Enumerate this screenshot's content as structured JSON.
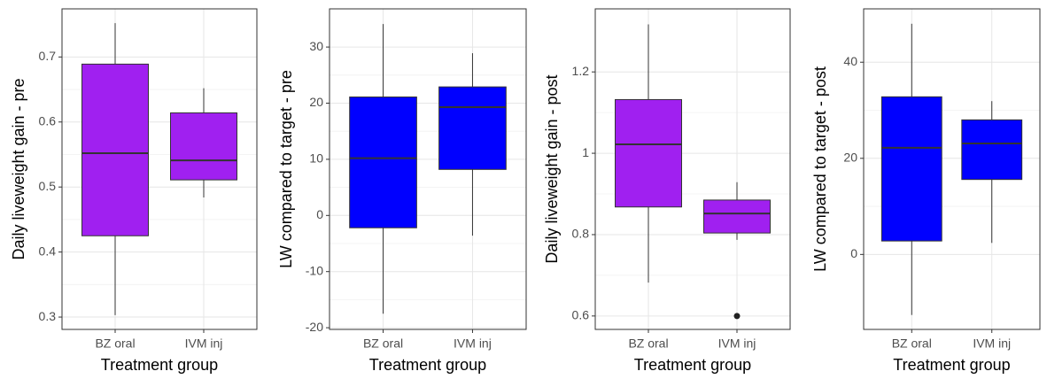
{
  "chart_data": [
    {
      "type": "boxplot",
      "ylabel": "Daily liveweight gain - pre",
      "xlabel": "Treatment group",
      "categories": [
        "BZ oral",
        "IVM inj"
      ],
      "color": "#a020f0",
      "boxes": [
        {
          "min": 0.303,
          "q1": 0.425,
          "median": 0.552,
          "q3": 0.689,
          "max": 0.752,
          "outliers": []
        },
        {
          "min": 0.484,
          "q1": 0.511,
          "median": 0.541,
          "q3": 0.614,
          "max": 0.652,
          "outliers": []
        }
      ],
      "ylim": [
        0.281,
        0.774
      ],
      "yticks": [
        0.3,
        0.4,
        0.5,
        0.6,
        0.7
      ],
      "grid": true
    },
    {
      "type": "boxplot",
      "ylabel": "LW compared to target - pre",
      "xlabel": "Treatment group",
      "categories": [
        "BZ oral",
        "IVM inj"
      ],
      "color": "#0000ff",
      "boxes": [
        {
          "min": -17.5,
          "q1": -2.2,
          "median": 10.2,
          "q3": 21.1,
          "max": 34.1,
          "outliers": []
        },
        {
          "min": -3.6,
          "q1": 8.2,
          "median": 19.3,
          "q3": 22.9,
          "max": 28.9,
          "outliers": []
        }
      ],
      "ylim": [
        -20.3,
        36.8
      ],
      "yticks": [
        -20,
        -10,
        0,
        10,
        20,
        30
      ],
      "grid": true
    },
    {
      "type": "boxplot",
      "ylabel": "Daily liveweight gain - post",
      "xlabel": "Treatment group",
      "categories": [
        "BZ oral",
        "IVM inj"
      ],
      "color": "#a020f0",
      "boxes": [
        {
          "min": 0.682,
          "q1": 0.868,
          "median": 1.022,
          "q3": 1.132,
          "max": 1.317,
          "outliers": []
        },
        {
          "min": 0.787,
          "q1": 0.804,
          "median": 0.852,
          "q3": 0.885,
          "max": 0.929,
          "outliers": [
            0.6
          ]
        }
      ],
      "ylim": [
        0.567,
        1.355
      ],
      "yticks": [
        0.6,
        0.8,
        1.0,
        1.2
      ],
      "grid": true
    },
    {
      "type": "boxplot",
      "ylabel": "LW compared to target - post",
      "xlabel": "Treatment group",
      "categories": [
        "BZ oral",
        "IVM inj"
      ],
      "color": "#0000ff",
      "boxes": [
        {
          "min": -12.6,
          "q1": 2.8,
          "median": 22.2,
          "q3": 32.8,
          "max": 48,
          "outliers": []
        },
        {
          "min": 2.4,
          "q1": 15.6,
          "median": 23.1,
          "q3": 28,
          "max": 31.9,
          "outliers": []
        }
      ],
      "ylim": [
        -15.6,
        51.1
      ],
      "yticks": [
        0,
        20,
        40
      ],
      "grid": true
    }
  ]
}
